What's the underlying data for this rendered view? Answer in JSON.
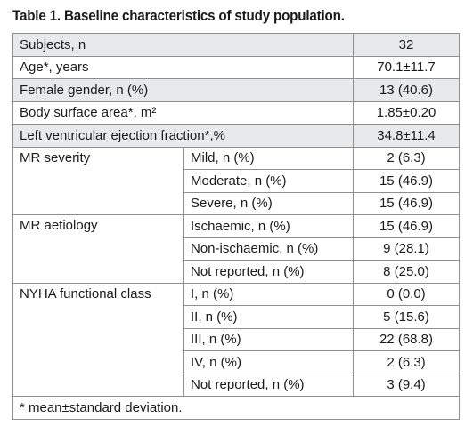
{
  "title": "Table 1. Baseline characteristics of study population.",
  "rows": [
    {
      "label": "Subjects, n",
      "value": "32"
    },
    {
      "label": "Age*, years",
      "value": "70.1±11.7"
    },
    {
      "label": "Female gender, n (%)",
      "value": "13 (40.6)"
    },
    {
      "label": "Body surface area*, m²",
      "value": "1.85±0.20"
    },
    {
      "label": "Left ventricular ejection fraction*,%",
      "value": "34.8±11.4"
    }
  ],
  "groups": [
    {
      "label": "MR severity",
      "items": [
        {
          "label": "Mild, n (%)",
          "value": "2 (6.3)"
        },
        {
          "label": "Moderate, n (%)",
          "value": "15 (46.9)"
        },
        {
          "label": "Severe, n (%)",
          "value": "15 (46.9)"
        }
      ]
    },
    {
      "label": "MR aetiology",
      "items": [
        {
          "label": "Ischaemic, n (%)",
          "value": "15 (46.9)"
        },
        {
          "label": "Non-ischaemic, n (%)",
          "value": "9 (28.1)"
        },
        {
          "label": "Not reported, n (%)",
          "value": "8 (25.0)"
        }
      ]
    },
    {
      "label": "NYHA functional class",
      "items": [
        {
          "label": "I, n (%)",
          "value": "0 (0.0)"
        },
        {
          "label": "II, n (%)",
          "value": "5 (15.6)"
        },
        {
          "label": "III, n (%)",
          "value": "22 (68.8)"
        },
        {
          "label": "IV, n (%)",
          "value": "2 (6.3)"
        },
        {
          "label": "Not reported, n (%)",
          "value": "3 (9.4)"
        }
      ]
    }
  ],
  "footnote": "* mean±standard deviation."
}
